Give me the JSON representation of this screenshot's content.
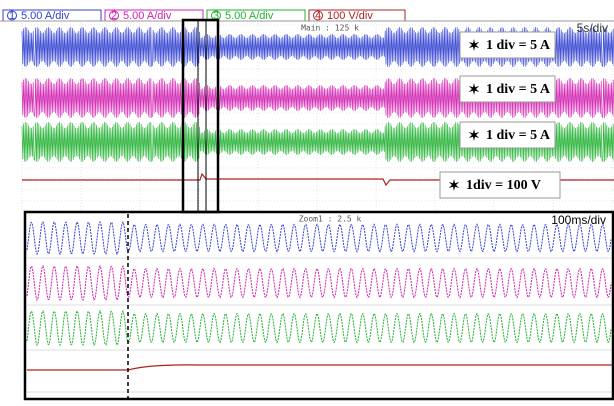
{
  "header": {
    "channels": [
      {
        "number": "1",
        "scale": "5.00 A/div",
        "color": "#3040d0"
      },
      {
        "number": "2",
        "scale": "5.00 A/div",
        "color": "#d020b0"
      },
      {
        "number": "3",
        "scale": "5.00 A/div",
        "color": "#20b030"
      },
      {
        "number": "4",
        "scale": "100 V/div",
        "color": "#b02020"
      }
    ]
  },
  "main": {
    "timebase": "5s/div",
    "sample_rate": "Main : 125 k",
    "annotations": [
      "1 div = 5 A",
      "1 div = 5 A",
      "1 div = 5 A",
      "1div = 100 V"
    ]
  },
  "zoom": {
    "timebase": "100ms/div",
    "sample_rate": "Zoom1 : 2.5 k"
  }
}
